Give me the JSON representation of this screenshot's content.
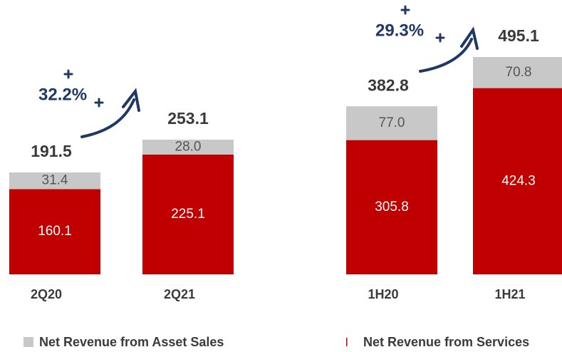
{
  "chart_data": {
    "type": "stacked_bar",
    "categories": [
      "2Q20",
      "2Q21",
      "1H20",
      "1H21"
    ],
    "series": [
      {
        "name": "Net Revenue from Services",
        "color": "#c00000",
        "values": [
          160.1,
          225.1,
          305.8,
          424.3
        ]
      },
      {
        "name": "Net Revenue from Asset Sales",
        "color": "#c8c8c8",
        "values": [
          31.4,
          28.0,
          77.0,
          70.8
        ]
      }
    ],
    "value_labels": [
      [
        "160.1",
        "225.1",
        "305.8",
        "424.3"
      ],
      [
        "31.4",
        "28.0",
        "77.0",
        "70.8"
      ]
    ],
    "totals": [
      191.5,
      253.1,
      382.8,
      495.1
    ],
    "annotations": [
      "32.2%",
      "29.3%"
    ]
  }
}
